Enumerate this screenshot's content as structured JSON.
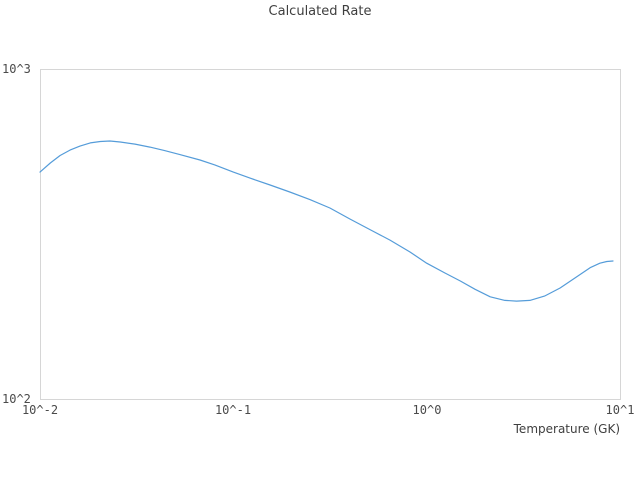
{
  "chart_data": {
    "type": "line",
    "title": "Calculated Rate",
    "xlabel": "Temperature (GK)",
    "ylabel": "",
    "x_scale": "log",
    "y_scale": "log",
    "xlim": [
      0.01,
      10
    ],
    "ylim": [
      100,
      1000
    ],
    "grid": false,
    "legend": "none",
    "x_ticks": [
      {
        "value": 0.01,
        "label": "10^-2"
      },
      {
        "value": 0.1,
        "label": "10^-1"
      },
      {
        "value": 1,
        "label": "10^0"
      },
      {
        "value": 10,
        "label": "10^1"
      }
    ],
    "y_ticks": [
      {
        "value": 100,
        "label": "10^2"
      },
      {
        "value": 1000,
        "label": "10^3"
      }
    ],
    "colors": {
      "line": "#559cd9",
      "frame": "#d6d6d6",
      "text": "#404040"
    },
    "series": [
      {
        "name": "Calculated Rate",
        "x": [
          0.01,
          0.0113,
          0.0127,
          0.0143,
          0.0161,
          0.0182,
          0.0205,
          0.023,
          0.026,
          0.031,
          0.037,
          0.0441,
          0.0526,
          0.0672,
          0.0802,
          0.1,
          0.122,
          0.155,
          0.196,
          0.249,
          0.316,
          0.401,
          0.509,
          0.646,
          0.82,
          1.0,
          1.24,
          1.49,
          1.78,
          2.13,
          2.54,
          2.92,
          3.42,
          4.07,
          4.9,
          5.87,
          7.0,
          7.87,
          8.55,
          9.2
        ],
        "y": [
          487,
          519,
          547,
          568,
          584,
          597,
          603,
          605,
          601,
          592,
          580,
          566,
          551,
          530,
          512,
          487,
          467,
          445,
          424,
          402,
          379,
          351,
          326,
          303,
          279,
          258,
          241,
          228,
          215,
          204,
          199,
          198,
          199,
          205,
          217,
          233,
          250,
          258,
          261,
          262
        ]
      }
    ]
  }
}
